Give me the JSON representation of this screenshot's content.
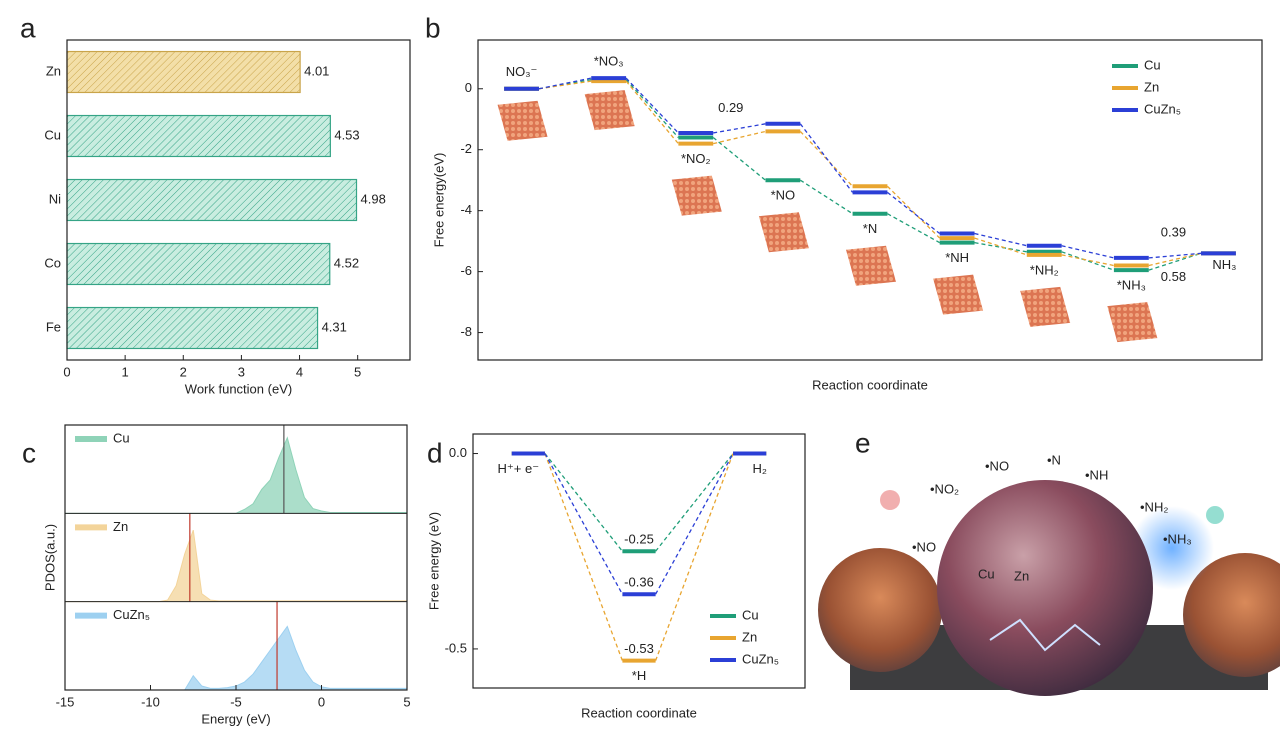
{
  "chart_data": [
    {
      "type": "hbar",
      "panel": "a",
      "categories": [
        "Zn",
        "Cu",
        "Ni",
        "Co",
        "Fe"
      ],
      "values": [
        4.01,
        4.53,
        4.98,
        4.52,
        4.31
      ],
      "colors": [
        "#f3dfa8",
        "#c9ede0",
        "#c9ede0",
        "#c9ede0",
        "#c9ede0"
      ],
      "edge_colors": [
        "#c9a44a",
        "#35a486",
        "#35a486",
        "#35a486",
        "#35a486"
      ],
      "xlim": [
        0,
        5.9
      ],
      "xticks": [
        0,
        1,
        2,
        3,
        4,
        5
      ],
      "xlabel": "Work function (eV)"
    },
    {
      "type": "energy",
      "panel": "b",
      "categories": [
        "NO₃⁻",
        "*NO₃",
        "*NO₂",
        "*NO",
        "*N",
        "*NH",
        "*NH₂",
        "*NH₃",
        "NH₃"
      ],
      "series": [
        {
          "name": "Cu",
          "color": "#1f9e78",
          "values": [
            0,
            0.3,
            -1.6,
            -3.0,
            -4.1,
            -5.05,
            -5.35,
            -5.95,
            -5.4
          ]
        },
        {
          "name": "Zn",
          "color": "#e8a530",
          "values": [
            0,
            0.25,
            -1.8,
            -1.4,
            -3.2,
            -4.9,
            -5.45,
            -5.8,
            -5.4
          ]
        },
        {
          "name": "CuZn₅",
          "color": "#2b3fd6",
          "values": [
            0,
            0.35,
            -1.45,
            -1.15,
            -3.4,
            -4.75,
            -5.15,
            -5.55,
            -5.4
          ]
        }
      ],
      "ylim": [
        -8.9,
        1.6
      ],
      "yticks": [
        0,
        -2,
        -4,
        -6,
        -8
      ],
      "ylabel": "Free energy(eV)",
      "xlabel": "Reaction coordinate",
      "legend": "upper right",
      "annotations": [
        {
          "text": "0.29",
          "color": "#2b3fd6"
        },
        {
          "text": "0.39",
          "color": "#1f9e78"
        },
        {
          "text": "0.58",
          "color": "#4aa0d8"
        }
      ]
    },
    {
      "type": "pdos",
      "panel": "c",
      "x": [
        -15,
        -14.5,
        -14,
        -13.5,
        -13,
        -12.5,
        -12,
        -11.5,
        -11,
        -10.5,
        -10,
        -9.5,
        -9,
        -8.5,
        -8,
        -7.5,
        -7,
        -6.5,
        -6,
        -5.5,
        -5,
        -4.5,
        -4,
        -3.5,
        -3,
        -2.5,
        -2,
        -1.5,
        -1,
        -0.5,
        0,
        0.5,
        1,
        1.5,
        2,
        2.5,
        3,
        3.5,
        4,
        4.5,
        5
      ],
      "series": [
        {
          "name": "Cu",
          "color": "#8fd3b8",
          "center": -2.2,
          "center_color": "#555555",
          "values": [
            0,
            0,
            0,
            0,
            0,
            0,
            0,
            0,
            0,
            0,
            0,
            0,
            0,
            0,
            0,
            0,
            0,
            0,
            0,
            0,
            0,
            0.05,
            0.12,
            0.3,
            0.42,
            0.7,
            0.95,
            0.55,
            0.2,
            0.06,
            0.03,
            0.01,
            0.01,
            0.01,
            0.01,
            0.01,
            0.01,
            0.01,
            0.01,
            0.01,
            0.01
          ]
        },
        {
          "name": "Zn",
          "color": "#f3d49a",
          "center": -7.7,
          "center_color": "#c0392b",
          "values": [
            0,
            0,
            0,
            0,
            0,
            0,
            0,
            0,
            0,
            0,
            0,
            0,
            0.02,
            0.2,
            0.6,
            0.9,
            0.1,
            0.02,
            0.01,
            0.01,
            0.01,
            0.01,
            0.01,
            0.01,
            0.01,
            0.01,
            0.01,
            0.01,
            0.01,
            0.01,
            0.01,
            0.01,
            0.01,
            0.01,
            0.01,
            0.01,
            0.01,
            0.01,
            0.01,
            0.01,
            0.01
          ]
        },
        {
          "name": "CuZn₅",
          "color": "#9dd0f0",
          "center": -2.6,
          "center_color": "#c0392b",
          "values": [
            0,
            0,
            0,
            0,
            0,
            0,
            0,
            0,
            0,
            0,
            0,
            0,
            0,
            0,
            0,
            0.18,
            0.05,
            0.02,
            0.02,
            0.03,
            0.05,
            0.1,
            0.2,
            0.35,
            0.5,
            0.65,
            0.8,
            0.5,
            0.25,
            0.1,
            0.04,
            0.02,
            0.02,
            0.02,
            0.02,
            0.02,
            0.02,
            0.02,
            0.02,
            0.02,
            0.02
          ]
        }
      ],
      "xlim": [
        -15,
        5
      ],
      "xticks": [
        -15,
        -10,
        -5,
        0,
        5
      ],
      "xlabel": "Energy (eV)",
      "ylabel": "PDOS(a.u.)"
    },
    {
      "type": "energy",
      "panel": "d",
      "categories": [
        "H⁺+ e⁻",
        "*H",
        "H₂"
      ],
      "series": [
        {
          "name": "Cu",
          "color": "#1f9e78",
          "values": [
            0,
            -0.25,
            0
          ]
        },
        {
          "name": "Zn",
          "color": "#e8a530",
          "values": [
            0,
            -0.53,
            0
          ]
        },
        {
          "name": "CuZn₅",
          "color": "#2b3fd6",
          "values": [
            0,
            -0.36,
            0
          ]
        }
      ],
      "ylim": [
        -0.6,
        0.05
      ],
      "yticks": [
        {
          "value": 0,
          "label": "0.0"
        },
        -0.5
      ],
      "ylabel": "Free energy (eV)",
      "xlabel": "Reaction coordinate",
      "legend": "lower right"
    }
  ],
  "illustration": {
    "panel": "e",
    "labels": [
      "•NO₂",
      "•NO",
      "•N",
      "•NH",
      "•NH₂",
      "•NH₃",
      "•NO",
      "Cu",
      "Zn"
    ]
  }
}
